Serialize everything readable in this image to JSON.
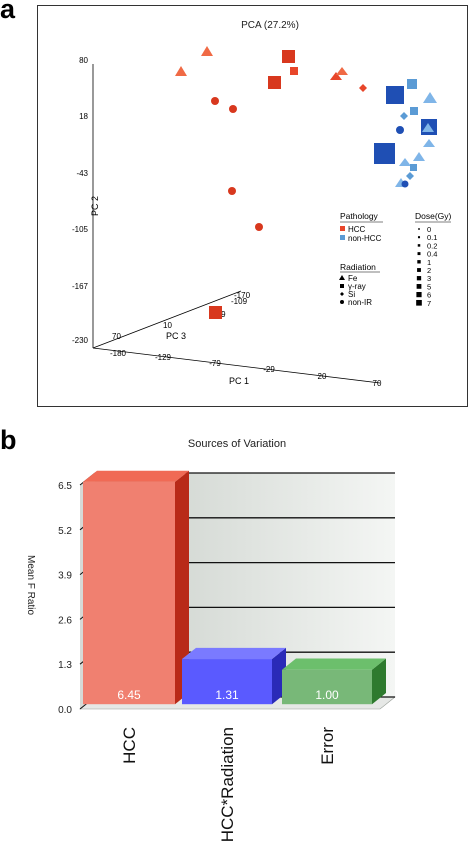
{
  "panels": {
    "a": "a",
    "b": "b"
  },
  "pca": {
    "title": "PCA (27.2%)",
    "pc1_label": "PC 1",
    "pc2_label": "PC 2",
    "pc3_label": "PC 3",
    "pc2_ticks": [
      "80",
      "18",
      "-43",
      "-105",
      "-167",
      "-230"
    ],
    "pc1_ticks": [
      "-180",
      "-129",
      "-79",
      "-29",
      "20",
      "70"
    ],
    "pc3_ticks": [
      "70",
      "10",
      "-49",
      "-109",
      "-170"
    ],
    "legend": {
      "pathology_title": "Pathology",
      "pathology": [
        {
          "label": "HCC",
          "color": "#e8462a"
        },
        {
          "label": "non-HCC",
          "color": "#5b9bd5"
        }
      ],
      "radiation_title": "Radiation",
      "radiation": [
        {
          "label": "Fe",
          "shape": "triangle"
        },
        {
          "label": "γ-ray",
          "shape": "cube"
        },
        {
          "label": "Si",
          "shape": "diamond"
        },
        {
          "label": "non-IR",
          "shape": "sphere"
        }
      ],
      "dose_title": "Dose(Gy)",
      "dose": [
        "0",
        "0.1",
        "0.2",
        "0.4",
        "1",
        "2",
        "3",
        "5",
        "6",
        "7"
      ]
    }
  },
  "chart_data": {
    "type": "bar",
    "title": "Sources of Variation",
    "ylabel": "Mean F Ratio",
    "xlabel": "",
    "categories": [
      "HCC",
      "HCC*Radiation",
      "Error"
    ],
    "values": [
      6.45,
      1.31,
      1.0
    ],
    "value_labels": [
      "6.45",
      "1.31",
      "1.00"
    ],
    "yticks": [
      "6.5",
      "5.2",
      "3.9",
      "2.6",
      "1.3",
      "0.0"
    ],
    "ylim": [
      0,
      6.5
    ],
    "grid": true,
    "colors": [
      "#e8402c",
      "#3a3af0",
      "#3f9a3f"
    ]
  }
}
